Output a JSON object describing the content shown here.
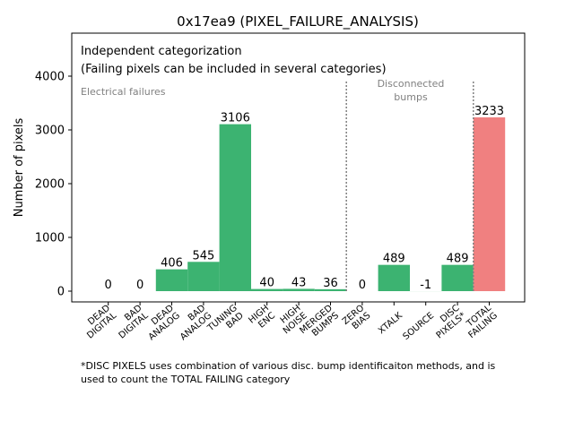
{
  "chart_data": {
    "type": "bar",
    "title": "0x17ea9 (PIXEL_FAILURE_ANALYSIS)",
    "xlabel": "",
    "ylabel": "Number of pixels",
    "ylim": [
      -200,
      4800
    ],
    "yticks": [
      0,
      1000,
      2000,
      3000,
      4000
    ],
    "categories": [
      [
        "DEAD",
        "DIGITAL"
      ],
      [
        "BAD",
        "DIGITAL"
      ],
      [
        "DEAD",
        "ANALOG"
      ],
      [
        "BAD",
        "ANALOG"
      ],
      [
        "TUNING",
        "BAD"
      ],
      [
        "HIGH",
        "ENC"
      ],
      [
        "HIGH",
        "NOISE"
      ],
      [
        "MERGED",
        "BUMPS"
      ],
      [
        "ZERO",
        "BIAS"
      ],
      [
        "XTALK"
      ],
      [
        "SOURCE"
      ],
      [
        "DISC",
        "PIXELS*"
      ],
      [
        "TOTAL",
        "FAILING"
      ]
    ],
    "values": [
      0,
      0,
      406,
      545,
      3106,
      40,
      43,
      36,
      0,
      489,
      -1,
      489,
      3233
    ],
    "bar_colors": [
      "#3cb371",
      "#3cb371",
      "#3cb371",
      "#3cb371",
      "#3cb371",
      "#3cb371",
      "#3cb371",
      "#3cb371",
      "#3cb371",
      "#3cb371",
      "#3cb371",
      "#3cb371",
      "#f08080"
    ],
    "annotations": {
      "line1": "Independent categorization",
      "line2": "(Failing pixels can be included in several categories)",
      "electrical": "Electrical failures",
      "disconnected": [
        "Disconnected",
        "bumps"
      ]
    },
    "separators_after_index": [
      7,
      11
    ],
    "separator_top_value": 3900
  },
  "footnote": "*DISC PIXELS uses combination of various disc. bump identificaiton methods, and is\nused to count the TOTAL FAILING category"
}
